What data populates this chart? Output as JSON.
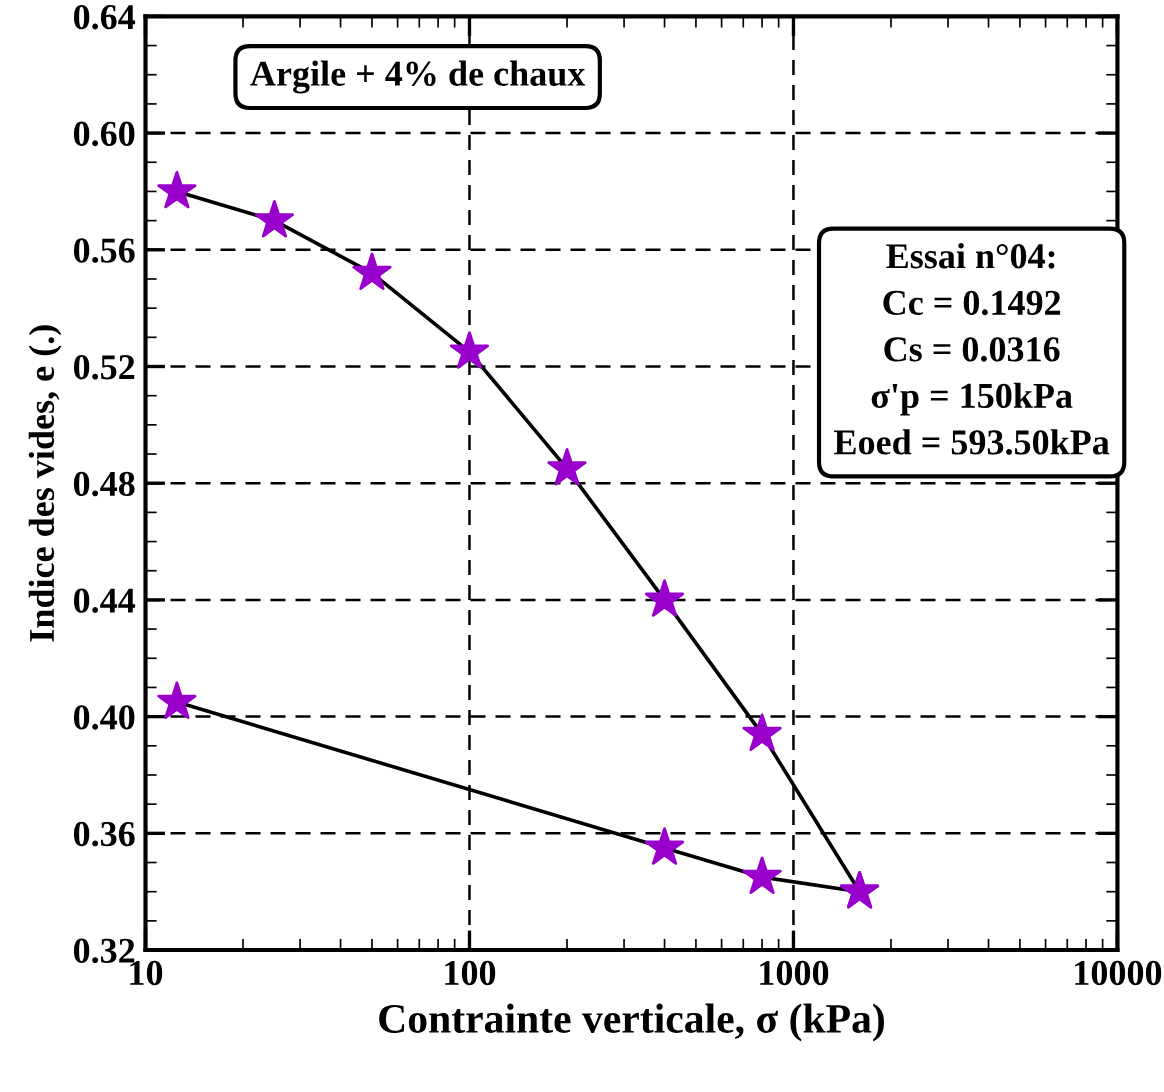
{
  "chart_data": {
    "type": "line",
    "xlabel": "Contrainte verticale, σ (kPa)",
    "ylabel": "Indice des vides, e (.)",
    "log": "x",
    "xlim": [
      10,
      10000
    ],
    "xticks": [
      10,
      100,
      1000,
      10000
    ],
    "ylim": [
      0.32,
      0.64
    ],
    "yticks": [
      {
        "value": 0.32,
        "label": "0.32"
      },
      {
        "value": 0.36,
        "label": "0.36"
      },
      {
        "value": 0.4,
        "label": "0.40"
      },
      {
        "value": 0.44,
        "label": "0.44"
      },
      {
        "value": 0.48,
        "label": "0.48"
      },
      {
        "value": 0.52,
        "label": "0.52"
      },
      {
        "value": 0.56,
        "label": "0.56"
      },
      {
        "value": 0.6,
        "label": "0.60"
      },
      {
        "value": 0.64,
        "label": "0.64"
      }
    ],
    "grid": true,
    "marker": "star",
    "line_style": "solid",
    "legend": false,
    "series": [
      {
        "color": "#9900cc",
        "x": [
          12.5,
          25,
          50,
          100,
          200,
          400,
          800,
          1600
        ],
        "values": [
          0.58,
          0.57,
          0.552,
          0.525,
          0.485,
          0.44,
          0.394,
          0.34
        ]
      },
      {
        "color": "#9900cc",
        "x": [
          1600,
          800,
          400,
          12.5
        ],
        "values": [
          0.34,
          0.345,
          0.355,
          0.405
        ]
      }
    ],
    "annotations": [
      "Argile + 4% de chaux",
      "Essai n°04:\nCc = 0.1492\nCs = 0.0316\nσ'p = 150kPa\nEoed = 593.50kPa"
    ]
  }
}
